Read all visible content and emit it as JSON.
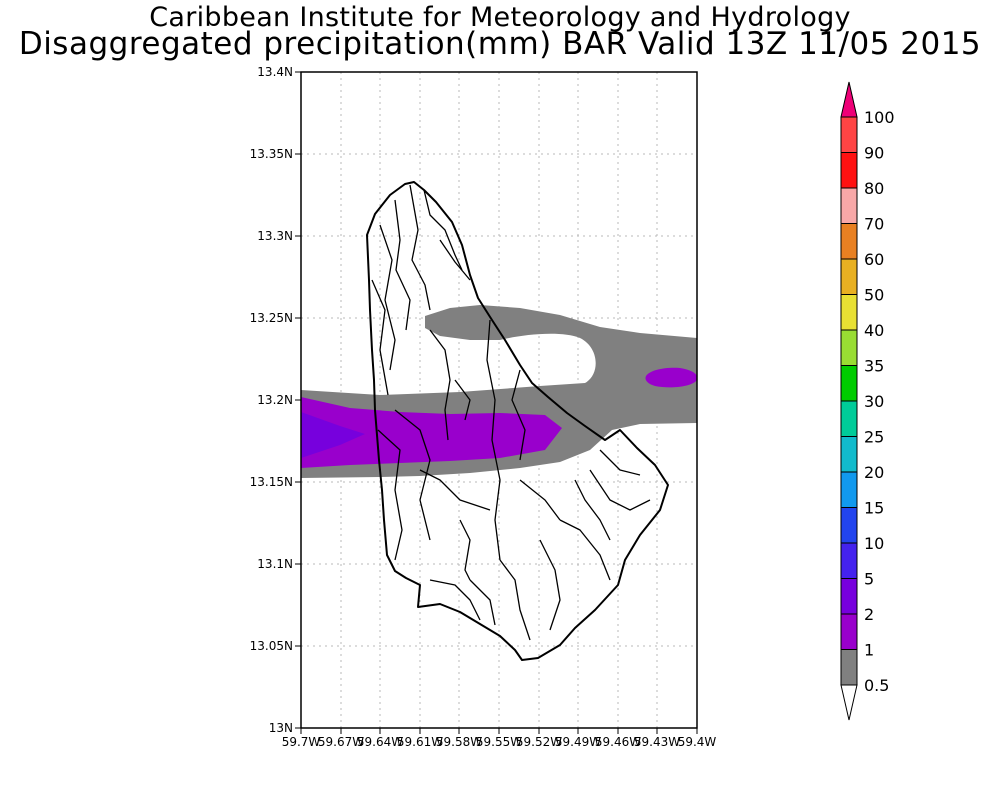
{
  "header": {
    "title": "Caribbean Institute for Meteorology and Hydrology",
    "subtitle": "Disaggregated precipitation(mm) BAR Valid 13Z 11/05 2015"
  },
  "map": {
    "region": "Barbados",
    "lat_range": [
      13.0,
      13.4
    ],
    "lon_range": [
      -59.7,
      -59.4
    ],
    "y_tick_labels": [
      "13N",
      "13.05N",
      "13.1N",
      "13.15N",
      "13.2N",
      "13.25N",
      "13.3N",
      "13.35N",
      "13.4N"
    ],
    "x_tick_labels": [
      "59.7W",
      "59.67W",
      "59.64W",
      "59.61W",
      "59.58W",
      "59.55W",
      "59.52W",
      "59.49W",
      "59.46W",
      "59.43W",
      "59.4W"
    ],
    "grid": true
  },
  "colorbar": {
    "levels": [
      "0.5",
      "1",
      "2",
      "5",
      "10",
      "15",
      "20",
      "25",
      "30",
      "35",
      "40",
      "50",
      "60",
      "70",
      "80",
      "90",
      "100"
    ],
    "colors": [
      "#ffffff",
      "#808080",
      "#9900cc",
      "#7700dd",
      "#4422ee",
      "#2244ee",
      "#1199ee",
      "#11bbcc",
      "#00cc99",
      "#00cc00",
      "#99dd33",
      "#e8e033",
      "#e8b022",
      "#e88022",
      "#f8a8a8",
      "#ff1111",
      "#ff4444",
      "#ee0077"
    ],
    "units": "mm"
  }
}
